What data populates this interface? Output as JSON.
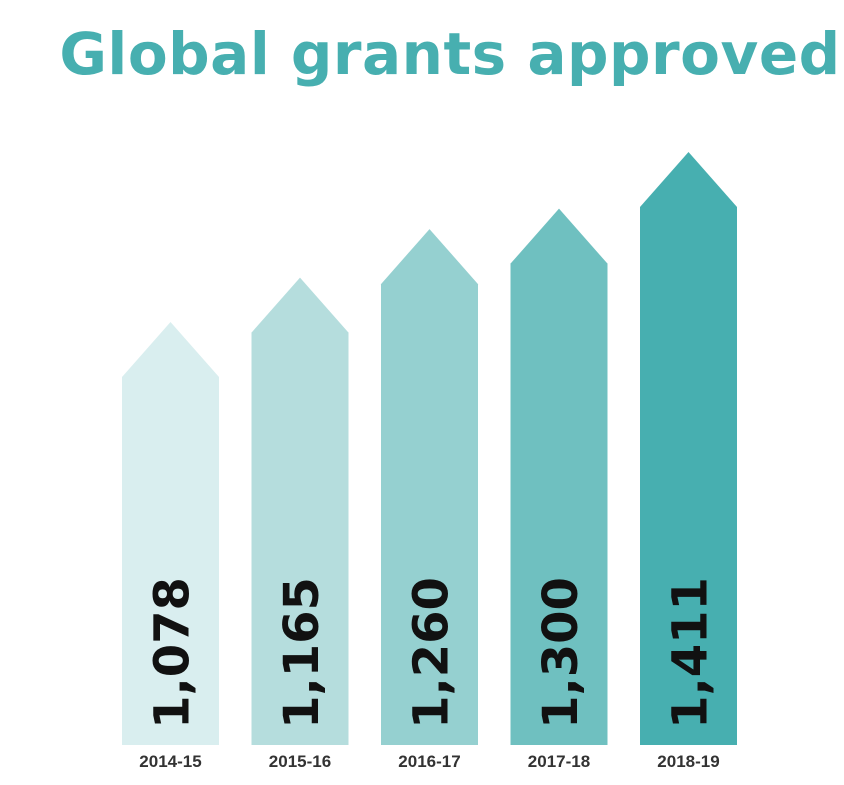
{
  "chart_data": {
    "type": "bar",
    "title": "Global grants approved",
    "categories": [
      "2014-15",
      "2015-16",
      "2016-17",
      "2017-18",
      "2018-19"
    ],
    "values": [
      1078,
      1165,
      1260,
      1300,
      1411
    ],
    "value_labels": [
      "1,078",
      "1,165",
      "1,260",
      "1,300",
      "1,411"
    ],
    "xlabel": "",
    "ylabel": "",
    "grid": false,
    "legend": "none",
    "bar_shape": "upward-arrow",
    "colors": [
      "#d9eeef",
      "#b5dddd",
      "#95d0d0",
      "#6fc0c0",
      "#47afb0"
    ],
    "title_color": "#47afb0",
    "label_color": "#111111",
    "category_color": "#333333"
  }
}
